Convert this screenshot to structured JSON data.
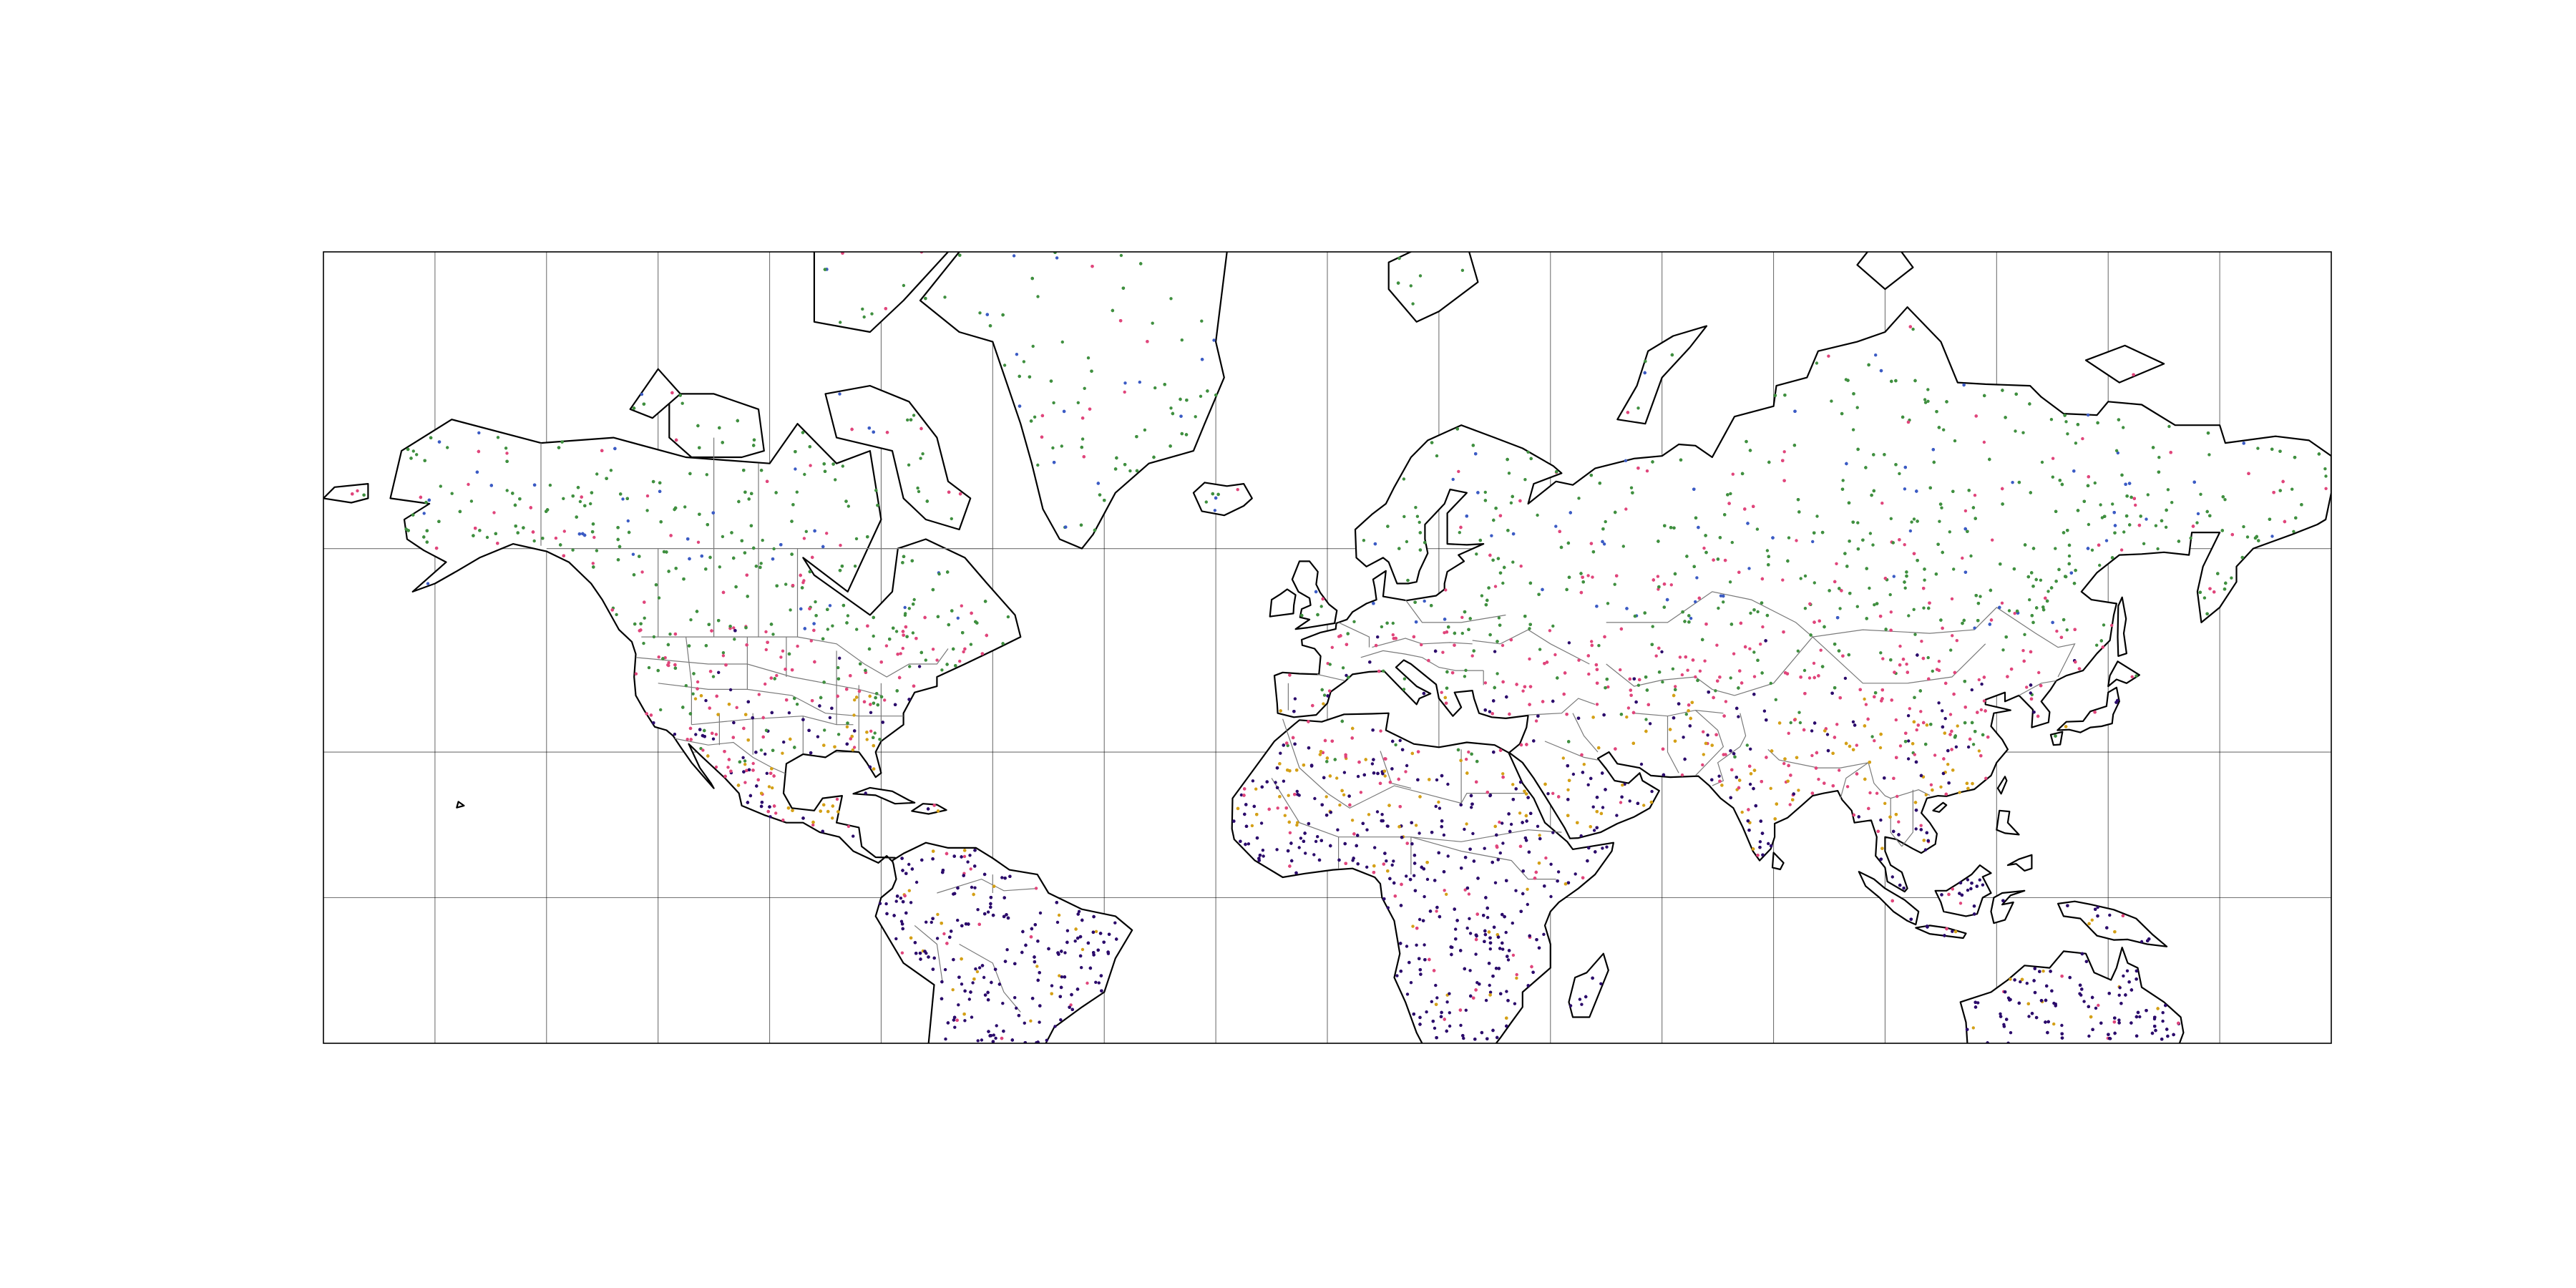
{
  "map": {
    "projection": "mercator",
    "extent": {
      "lon": [
        -180,
        180
      ],
      "lat": [
        -30,
        80
      ]
    },
    "meridians": [
      -180,
      -160,
      -140,
      -120,
      -100,
      -80,
      -60,
      -40,
      -20,
      0,
      20,
      40,
      60,
      80,
      100,
      120,
      140,
      160,
      180
    ],
    "parallels": [
      -30,
      0,
      30,
      60,
      80
    ],
    "gridlines": true,
    "land_outline_color": "#000000",
    "country_borders_color": "#7a7a7a",
    "marker_categories": [
      {
        "key": "tropical",
        "color": "#2b0a6b",
        "icon": "dot"
      },
      {
        "key": "hot-arid",
        "color": "#d4a017",
        "icon": "dot"
      },
      {
        "key": "temperate",
        "color": "#e0457b",
        "icon": "dot"
      },
      {
        "key": "continental",
        "color": "#3f8f3f",
        "icon": "dot"
      },
      {
        "key": "polar",
        "color": "#3b5bc4",
        "icon": "dot"
      }
    ]
  }
}
